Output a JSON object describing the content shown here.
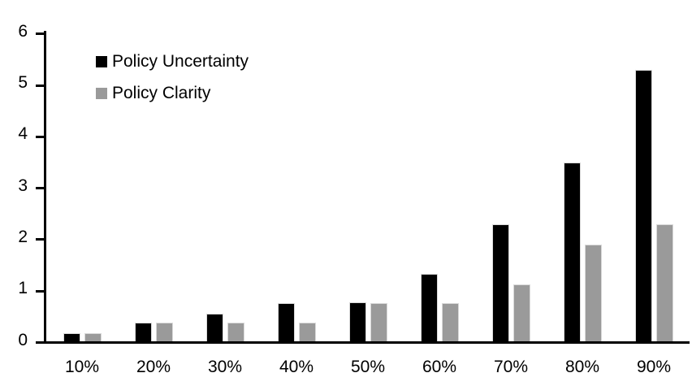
{
  "chart_data": {
    "type": "bar",
    "title": "",
    "xlabel": "",
    "ylabel": "",
    "categories": [
      "10%",
      "20%",
      "30%",
      "40%",
      "50%",
      "60%",
      "70%",
      "80%",
      "90%"
    ],
    "series": [
      {
        "name": "Policy Uncertainty",
        "color": "#000000",
        "values": [
          0.19,
          0.38,
          0.56,
          0.76,
          0.78,
          1.33,
          2.3,
          3.5,
          5.3
        ]
      },
      {
        "name": "Policy Clarity",
        "color": "#9a9a9a",
        "values": [
          0.19,
          0.38,
          0.38,
          0.38,
          0.76,
          0.76,
          1.13,
          1.9,
          2.3
        ]
      }
    ],
    "ylim": [
      0,
      6
    ],
    "yticks": [
      0,
      1,
      2,
      3,
      4,
      5,
      6
    ],
    "grid": false,
    "legend_position": "inside-top-left",
    "bar_outline_color": "#d9d9d9",
    "axis_color": "#000000",
    "background_color": "#ffffff"
  }
}
